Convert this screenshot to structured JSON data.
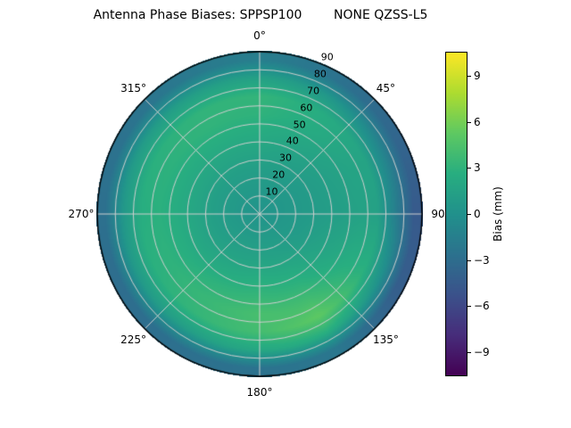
{
  "title": "Antenna Phase Biases: SPPSP100        NONE QZSS-L5",
  "chart_data": {
    "type": "heatmap",
    "projection": "polar",
    "title": "Antenna Phase Biases: SPPSP100        NONE QZSS-L5",
    "angular_tick_labels": [
      "0°",
      "45°",
      "90",
      "135°",
      "180°",
      "225°",
      "270°",
      "315°"
    ],
    "radial_tick_labels": [
      "10",
      "20",
      "30",
      "40",
      "50",
      "60",
      "70",
      "80",
      "90"
    ],
    "radial_max": 90,
    "radial_label_angle_deg": 22.5,
    "grid_on": true,
    "grid_color": "#cfcfcf",
    "outline_color": "#000000",
    "colormap": {
      "name": "viridis",
      "anchors": [
        "#440154",
        "#472d7b",
        "#3b528b",
        "#2c728e",
        "#21918c",
        "#28ae80",
        "#5ec962",
        "#addc30",
        "#fde725"
      ]
    },
    "colorbar": {
      "label": "Bias (mm)",
      "position": "right",
      "vmin": -10.5,
      "vmax": 10.5,
      "ticks": [
        9,
        6,
        3,
        0,
        -3,
        -6,
        -9
      ],
      "tick_labels": [
        "9",
        "6",
        "3",
        "0",
        "−3",
        "−6",
        "−9"
      ]
    },
    "azimuth_centers_deg": [
      0,
      30,
      60,
      90,
      120,
      150,
      180,
      210,
      240,
      270,
      300,
      330
    ],
    "zenith_centers_deg": [
      5,
      15,
      25,
      35,
      45,
      55,
      65,
      75,
      85
    ],
    "values_mm": [
      [
        0.4,
        0.4,
        0.4,
        0.4,
        0.4,
        0.5,
        0.5,
        0.5,
        0.5,
        0.4,
        0.4,
        0.4
      ],
      [
        0.8,
        0.7,
        0.6,
        0.6,
        0.7,
        0.9,
        1.0,
        1.0,
        0.9,
        0.8,
        0.8,
        0.8
      ],
      [
        1.2,
        1.0,
        0.8,
        0.8,
        1.0,
        1.4,
        1.6,
        1.5,
        1.3,
        1.2,
        1.2,
        1.2
      ],
      [
        1.8,
        1.4,
        1.1,
        1.0,
        1.5,
        2.2,
        2.5,
        2.2,
        1.9,
        1.8,
        1.8,
        1.8
      ],
      [
        2.4,
        1.9,
        1.4,
        1.2,
        2.0,
        3.0,
        3.3,
        3.0,
        2.6,
        2.4,
        2.4,
        2.5
      ],
      [
        3.0,
        2.4,
        1.7,
        1.5,
        2.6,
        4.0,
        4.2,
        3.5,
        3.0,
        2.8,
        2.9,
        3.1
      ],
      [
        3.2,
        2.5,
        1.7,
        1.4,
        2.9,
        5.2,
        4.0,
        3.3,
        2.8,
        2.6,
        2.8,
        3.1
      ],
      [
        1.4,
        0.6,
        -0.8,
        -1.6,
        0.2,
        2.6,
        2.0,
        1.2,
        0.8,
        0.6,
        0.9,
        1.2
      ],
      [
        -1.6,
        -2.6,
        -3.6,
        -4.6,
        -4.2,
        -2.2,
        -2.6,
        -2.8,
        -3.0,
        -2.8,
        -2.6,
        -2.1
      ]
    ]
  }
}
